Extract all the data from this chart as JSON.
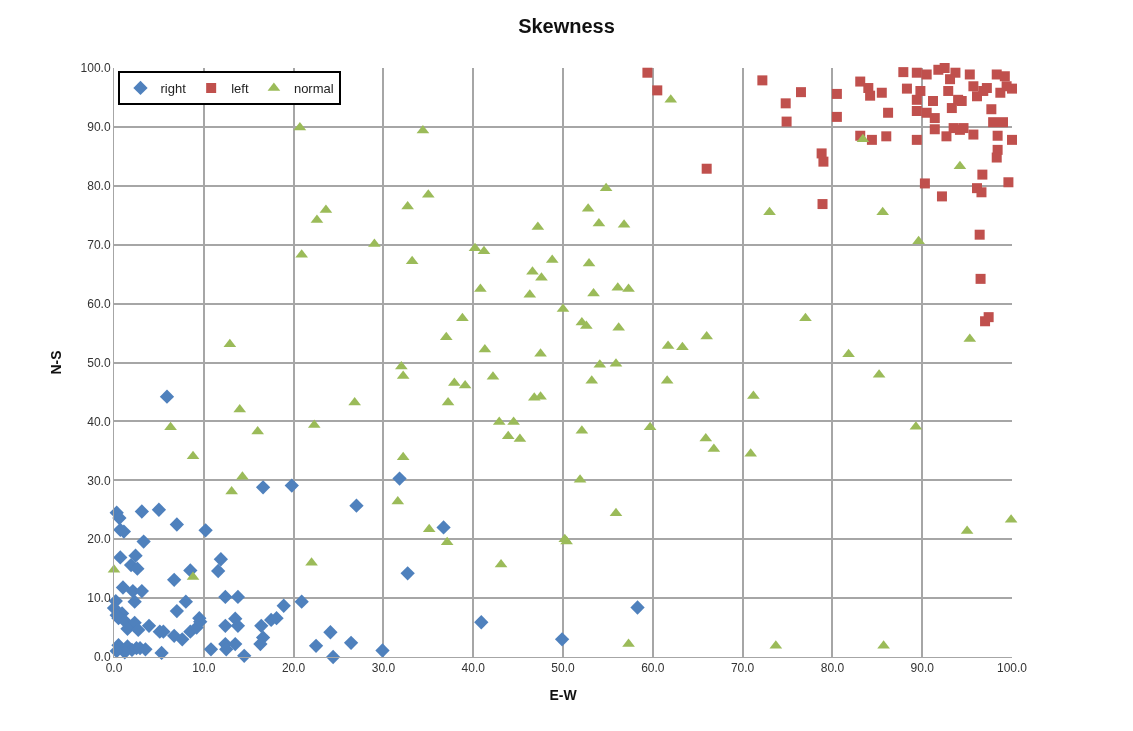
{
  "chart_data": {
    "type": "scatter",
    "title": "Skewness",
    "xlabel": "E-W",
    "ylabel": "N-S",
    "xlim": [
      0,
      100
    ],
    "ylim": [
      0,
      100
    ],
    "xticks": [
      {
        "value": 0,
        "label": "0.0"
      },
      {
        "value": 10,
        "label": "10.0"
      },
      {
        "value": 20,
        "label": "20.0"
      },
      {
        "value": 30,
        "label": "30.0"
      },
      {
        "value": 40,
        "label": "40.0"
      },
      {
        "value": 50,
        "label": "50.0"
      },
      {
        "value": 60,
        "label": "60.0"
      },
      {
        "value": 70,
        "label": "70.0"
      },
      {
        "value": 80,
        "label": "80.0"
      },
      {
        "value": 90,
        "label": "90.0"
      },
      {
        "value": 100,
        "label": "100.0"
      }
    ],
    "yticks": [
      {
        "value": 0,
        "label": "0.0"
      },
      {
        "value": 10,
        "label": "10.0"
      },
      {
        "value": 20,
        "label": "20.0"
      },
      {
        "value": 30,
        "label": "30.0"
      },
      {
        "value": 40,
        "label": "40.0"
      },
      {
        "value": 50,
        "label": "50.0"
      },
      {
        "value": 60,
        "label": "60.0"
      },
      {
        "value": 70,
        "label": "70.0"
      },
      {
        "value": 80,
        "label": "80.0"
      },
      {
        "value": 90,
        "label": "90.0"
      },
      {
        "value": 100,
        "label": "100.0"
      }
    ],
    "grid": true,
    "legend": "top left",
    "series": [
      {
        "name": "right",
        "color": "#4f81bd",
        "marker": "diamond",
        "x": [
          0.3,
          0.6,
          0.7,
          1.1,
          3.1,
          5.0,
          7.0,
          10.2,
          3.3,
          16.6,
          19.8,
          31.8,
          27.0,
          36.7,
          0.7,
          2.4,
          1.9,
          2.6,
          8.5,
          11.9,
          11.6,
          6.7,
          32.7,
          1.0,
          2.1,
          3.1,
          0.2,
          2.3,
          8.0,
          12.4,
          13.8,
          20.9,
          18.9,
          0.0,
          0.9,
          7.0,
          0.5,
          1.2,
          2.3,
          3.9,
          1.5,
          2.7,
          5.1,
          5.5,
          6.7,
          7.6,
          8.5,
          9.2,
          9.5,
          9.6,
          12.4,
          13.5,
          13.8,
          16.4,
          17.5,
          18.1,
          16.6,
          16.3,
          12.4,
          12.5,
          13.5,
          10.8,
          5.3,
          14.5,
          22.5,
          24.1,
          24.4,
          26.4,
          29.9,
          40.9,
          49.9,
          58.3,
          5.9,
          0.3,
          0.5,
          1.5,
          2.0,
          2.5,
          2.9,
          1.2,
          0.3,
          3.5
        ],
        "values": [
          24.5,
          23.6,
          21.6,
          21.3,
          24.7,
          25.0,
          22.5,
          21.5,
          19.6,
          28.8,
          29.1,
          30.3,
          25.7,
          22.0,
          16.9,
          17.2,
          15.6,
          15.0,
          14.7,
          16.6,
          14.6,
          13.1,
          14.2,
          11.8,
          11.2,
          11.2,
          9.5,
          9.4,
          9.4,
          10.2,
          10.2,
          9.4,
          8.7,
          8.3,
          7.4,
          7.8,
          6.6,
          6.1,
          5.8,
          5.3,
          4.8,
          4.6,
          4.3,
          4.3,
          3.6,
          3.0,
          4.3,
          5.0,
          6.6,
          6.0,
          5.3,
          6.5,
          5.3,
          5.3,
          6.3,
          6.6,
          3.3,
          2.2,
          2.2,
          1.3,
          2.2,
          1.3,
          0.7,
          0.2,
          1.9,
          4.2,
          0.0,
          2.4,
          1.1,
          5.9,
          3.0,
          8.4,
          44.2,
          7.1,
          2.0,
          1.8,
          1.2,
          1.5,
          1.5,
          0.8,
          1.0,
          1.3
        ]
      },
      {
        "name": "left",
        "color": "#c0504d",
        "marker": "square",
        "x": [
          59.4,
          60.5,
          66.0,
          72.2,
          76.5,
          74.8,
          74.9,
          80.5,
          80.5,
          78.8,
          79.0,
          78.9,
          83.1,
          84.0,
          84.2,
          85.5,
          86.2,
          83.1,
          84.4,
          86.0,
          87.9,
          89.4,
          90.3,
          92.2,
          96.4,
          96.5,
          97.0,
          97.4,
          99.6,
          100.0,
          96.1,
          96.6,
          96.7,
          98.4,
          98.3,
          98.4,
          97.9,
          99.0,
          97.7,
          89.4,
          90.5,
          91.8,
          92.5,
          93.7,
          95.3,
          98.3,
          99.2,
          88.3,
          89.8,
          92.9,
          95.7,
          97.2,
          100.0,
          89.4,
          91.2,
          94.0,
          96.1,
          98.7,
          89.4,
          90.5,
          91.4,
          93.3,
          94.4,
          91.4,
          92.7,
          94.2,
          95.7,
          94.6,
          93.5,
          93.1,
          96.8,
          99.4
        ],
        "values": [
          99.2,
          96.2,
          82.9,
          97.9,
          95.9,
          94.0,
          90.9,
          95.6,
          91.7,
          85.5,
          84.1,
          76.9,
          97.7,
          96.6,
          95.3,
          95.8,
          92.4,
          88.5,
          87.8,
          88.4,
          99.3,
          87.8,
          80.4,
          78.2,
          71.7,
          64.2,
          57.0,
          57.7,
          80.6,
          87.8,
          79.6,
          78.9,
          81.9,
          86.1,
          84.8,
          88.5,
          90.8,
          90.8,
          93.0,
          99.2,
          98.9,
          99.7,
          100.0,
          99.2,
          98.9,
          98.9,
          98.6,
          96.5,
          96.1,
          96.1,
          96.9,
          96.6,
          96.5,
          94.6,
          94.4,
          94.6,
          95.2,
          95.8,
          92.7,
          92.4,
          91.5,
          93.2,
          94.4,
          89.6,
          88.4,
          89.5,
          88.7,
          89.8,
          89.8,
          98.1,
          96.1,
          96.9
        ]
      },
      {
        "name": "normal",
        "color": "#9bbb59",
        "marker": "triangle",
        "x": [
          14.0,
          6.3,
          16.0,
          22.3,
          26.8,
          37.2,
          8.8,
          14.3,
          13.1,
          32.2,
          31.6,
          35.1,
          37.1,
          22.0,
          43.1,
          0.0,
          8.8,
          42.9,
          44.5,
          43.9,
          45.2,
          20.7,
          34.4,
          35.0,
          32.7,
          23.6,
          22.6,
          47.2,
          29.0,
          20.9,
          33.2,
          40.2,
          41.2,
          48.8,
          46.6,
          47.6,
          40.8,
          46.3,
          38.8,
          37.0,
          41.3,
          47.5,
          12.9,
          32.0,
          32.2,
          42.2,
          37.9,
          39.1,
          46.8,
          47.5,
          62.0,
          83.4,
          94.2,
          54.8,
          52.8,
          54.0,
          56.8,
          73.0,
          85.6,
          89.6,
          52.9,
          53.4,
          56.1,
          57.3,
          50.0,
          52.1,
          52.6,
          56.2,
          61.7,
          63.3,
          66.0,
          77.0,
          81.8,
          95.3,
          54.1,
          55.9,
          53.2,
          61.6,
          71.2,
          85.2,
          52.1,
          59.7,
          65.9,
          66.8,
          70.9,
          89.3,
          51.9,
          55.9,
          50.2,
          50.4,
          99.9,
          95.0,
          57.3,
          73.7,
          85.7
        ],
        "values": [
          42.0,
          39.0,
          38.3,
          39.4,
          43.2,
          43.2,
          34.1,
          30.6,
          28.1,
          33.9,
          26.4,
          21.7,
          19.5,
          16.0,
          15.7,
          14.8,
          13.6,
          39.9,
          39.9,
          37.5,
          37.0,
          89.9,
          89.4,
          78.5,
          76.5,
          75.9,
          74.2,
          73.0,
          70.1,
          68.3,
          67.2,
          69.4,
          68.9,
          67.4,
          65.4,
          64.4,
          62.5,
          61.5,
          57.5,
          54.3,
          52.2,
          51.5,
          53.1,
          49.3,
          47.7,
          47.6,
          46.5,
          46.1,
          44.0,
          44.2,
          94.6,
          87.9,
          83.3,
          79.6,
          76.1,
          73.6,
          73.4,
          75.5,
          75.5,
          70.6,
          66.8,
          61.7,
          62.7,
          62.5,
          59.1,
          56.8,
          56.2,
          55.9,
          52.8,
          52.6,
          54.4,
          57.5,
          51.4,
          54.0,
          49.6,
          49.8,
          46.9,
          46.9,
          44.3,
          47.9,
          38.4,
          39.0,
          37.1,
          35.3,
          34.5,
          39.1,
          30.1,
          24.4,
          20.0,
          19.6,
          23.3,
          21.4,
          2.2,
          1.9,
          1.9
        ]
      }
    ]
  }
}
